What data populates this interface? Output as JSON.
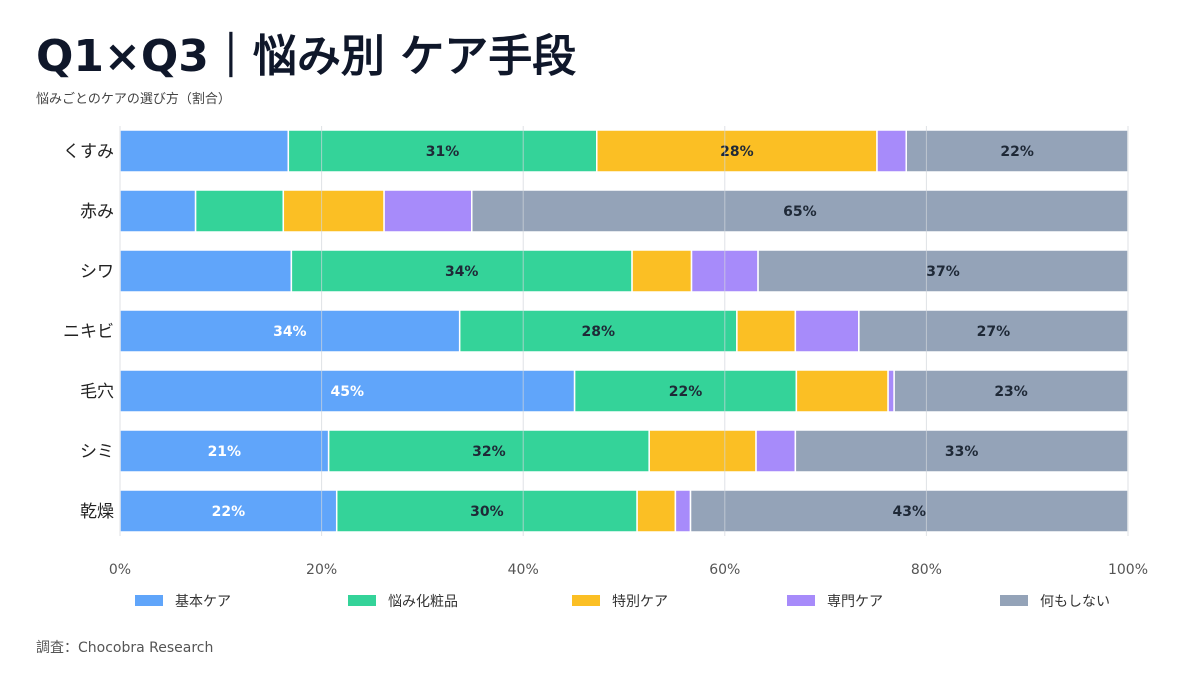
{
  "chart_data": {
    "type": "bar",
    "orientation": "horizontal",
    "stacked": true,
    "title": "Q1×Q3｜悩み別 ケア手段",
    "subtitle": "悩みごとのケアの選び方（割合）",
    "source": "調査：Chocobra Research",
    "categories": [
      "くすみ",
      "赤み",
      "シワ",
      "ニキビ",
      "毛穴",
      "シミ",
      "乾燥"
    ],
    "series": [
      {
        "name": "基本ケア",
        "color": "#60a5fa",
        "values": [
          16.7,
          7.5,
          17.0,
          33.7,
          45.1,
          20.7,
          21.5
        ]
      },
      {
        "name": "悩み化粧品",
        "color": "#34d399",
        "values": [
          30.6,
          8.7,
          33.8,
          27.5,
          22.0,
          31.8,
          29.8
        ]
      },
      {
        "name": "特別ケア",
        "color": "#fbbf24",
        "values": [
          27.8,
          10.0,
          5.9,
          5.8,
          9.1,
          10.6,
          3.8
        ]
      },
      {
        "name": "専門ケア",
        "color": "#a78bfa",
        "values": [
          2.9,
          8.7,
          6.6,
          6.3,
          0.6,
          3.9,
          1.5
        ]
      },
      {
        "name": "何もしない",
        "color": "#94a3b8",
        "values": [
          22.0,
          65.1,
          36.7,
          26.7,
          23.2,
          33.0,
          43.4
        ]
      }
    ],
    "xlim": [
      0,
      100
    ],
    "xticks": [
      "0%",
      "20%",
      "40%",
      "60%",
      "80%",
      "100%"
    ],
    "grid": true,
    "legend": "bottom",
    "data_labels": "shown for segments of 20% or more, rounded percent"
  }
}
